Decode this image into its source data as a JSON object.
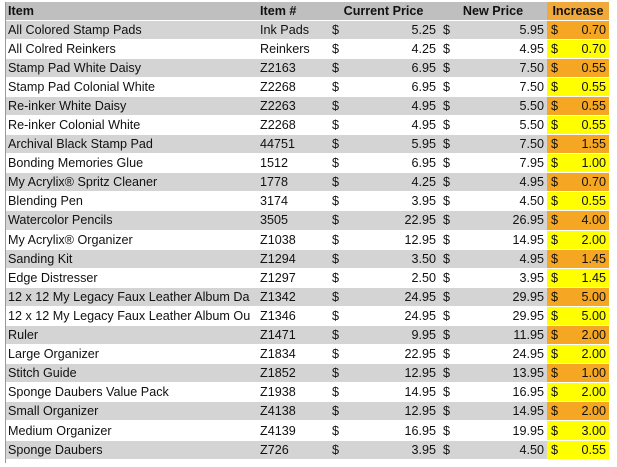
{
  "headers": {
    "item": "Item",
    "item_no": "Item #",
    "current_price": "Current Price",
    "new_price": "New Price",
    "increase": "Increase"
  },
  "currency_symbol": "$",
  "rows": [
    {
      "item": "All Colored Stamp Pads",
      "item_no": "Ink Pads",
      "current": "5.25",
      "new": "5.95",
      "increase": "0.70",
      "increase_color": "orange"
    },
    {
      "item": "All Colred Reinkers",
      "item_no": "Reinkers",
      "current": "4.25",
      "new": "4.95",
      "increase": "0.70",
      "increase_color": "yellow"
    },
    {
      "item": "Stamp Pad White Daisy",
      "item_no": "Z2163",
      "current": "6.95",
      "new": "7.50",
      "increase": "0.55",
      "increase_color": "orange"
    },
    {
      "item": "Stamp Pad Colonial White",
      "item_no": "Z2268",
      "current": "6.95",
      "new": "7.50",
      "increase": "0.55",
      "increase_color": "yellow"
    },
    {
      "item": "Re-inker White Daisy",
      "item_no": "Z2263",
      "current": "4.95",
      "new": "5.50",
      "increase": "0.55",
      "increase_color": "orange"
    },
    {
      "item": "Re-inker Colonial White",
      "item_no": "Z2268",
      "current": "4.95",
      "new": "5.50",
      "increase": "0.55",
      "increase_color": "yellow"
    },
    {
      "item": "Archival Black Stamp Pad",
      "item_no": "44751",
      "current": "5.95",
      "new": "7.50",
      "increase": "1.55",
      "increase_color": "orange"
    },
    {
      "item": "Bonding Memories Glue",
      "item_no": "1512",
      "current": "6.95",
      "new": "7.95",
      "increase": "1.00",
      "increase_color": "yellow"
    },
    {
      "item": "My Acrylix® Spritz Cleaner",
      "item_no": "1778",
      "current": "4.25",
      "new": "4.95",
      "increase": "0.70",
      "increase_color": "orange"
    },
    {
      "item": "Blending Pen",
      "item_no": "3174",
      "current": "3.95",
      "new": "4.50",
      "increase": "0.55",
      "increase_color": "yellow"
    },
    {
      "item": "Watercolor Pencils",
      "item_no": "3505",
      "current": "22.95",
      "new": "26.95",
      "increase": "4.00",
      "increase_color": "orange"
    },
    {
      "item": "My Acrylix® Organizer",
      "item_no": "Z1038",
      "current": "12.95",
      "new": "14.95",
      "increase": "2.00",
      "increase_color": "yellow"
    },
    {
      "item": "Sanding Kit",
      "item_no": "Z1294",
      "current": "3.50",
      "new": "4.95",
      "increase": "1.45",
      "increase_color": "orange"
    },
    {
      "item": "Edge Distresser",
      "item_no": "Z1297",
      "current": "2.50",
      "new": "3.95",
      "increase": "1.45",
      "increase_color": "yellow"
    },
    {
      "item": "12 x 12 My Legacy Faux Leather Album Da",
      "item_no": "Z1342",
      "current": "24.95",
      "new": "29.95",
      "increase": "5.00",
      "increase_color": "orange"
    },
    {
      "item": "12 x 12 My Legacy Faux Leather Album Ou",
      "item_no": "Z1346",
      "current": "24.95",
      "new": "29.95",
      "increase": "5.00",
      "increase_color": "yellow"
    },
    {
      "item": "Ruler",
      "item_no": "Z1471",
      "current": "9.95",
      "new": "11.95",
      "increase": "2.00",
      "increase_color": "orange"
    },
    {
      "item": "Large Organizer",
      "item_no": "Z1834",
      "current": "22.95",
      "new": "24.95",
      "increase": "2.00",
      "increase_color": "yellow"
    },
    {
      "item": "Stitch Guide",
      "item_no": "Z1852",
      "current": "12.95",
      "new": "13.95",
      "increase": "1.00",
      "increase_color": "orange"
    },
    {
      "item": "Sponge Daubers Value Pack",
      "item_no": "Z1938",
      "current": "14.95",
      "new": "16.95",
      "increase": "2.00",
      "increase_color": "yellow"
    },
    {
      "item": "Small Organizer",
      "item_no": "Z4138",
      "current": "12.95",
      "new": "14.95",
      "increase": "2.00",
      "increase_color": "orange"
    },
    {
      "item": "Medium Organizer",
      "item_no": "Z4139",
      "current": "16.95",
      "new": "19.95",
      "increase": "3.00",
      "increase_color": "yellow"
    },
    {
      "item": "Sponge Daubers",
      "item_no": "Z726",
      "current": "3.95",
      "new": "4.50",
      "increase": "0.55",
      "increase_color": "yellow"
    }
  ]
}
